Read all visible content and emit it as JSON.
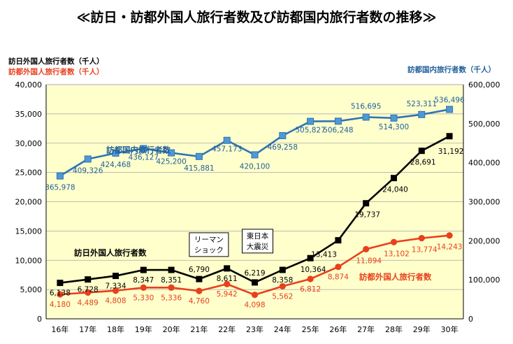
{
  "title": "≪訪日・訪都外国人旅行者数及び訪都国内旅行者数の推移≫",
  "axis_titles": {
    "left_black": "訪日外国人旅行者数（千人）",
    "left_red": "訪都外国人旅行者数（千人）",
    "right_blue": "訪都国内旅行者数（千人）"
  },
  "colors": {
    "plot_bg": "#ffffcc",
    "black_series": "#000000",
    "red_series": "#e8401c",
    "blue_series": "#2e74b5",
    "blue_marker": "#4f98d4",
    "red_label": "#e8401c",
    "blue_label": "#1f5f9a"
  },
  "chart_data": {
    "type": "line",
    "categories": [
      "16年",
      "17年",
      "18年",
      "19年",
      "20年",
      "21年",
      "22年",
      "23年",
      "24年",
      "25年",
      "26年",
      "27年",
      "28年",
      "29年",
      "30年"
    ],
    "left_axis": {
      "min": 0,
      "max": 40000,
      "ticks": [
        "0",
        "5,000",
        "10,000",
        "15,000",
        "20,000",
        "25,000",
        "30,000",
        "35,000",
        "40,000"
      ]
    },
    "right_axis": {
      "min": 0,
      "max": 600000,
      "ticks": [
        "0",
        "100,000",
        "200,000",
        "300,000",
        "400,000",
        "500,000",
        "600,000"
      ]
    },
    "grid": true,
    "series": [
      {
        "name": "訪日外国人旅行者数",
        "axis": "left",
        "values": [
          6138,
          6728,
          7334,
          8347,
          8351,
          6790,
          8611,
          6219,
          8358,
          10364,
          13413,
          19737,
          24040,
          28691,
          31192
        ],
        "labels": [
          "6,138",
          "6,728",
          "7,334",
          "8,347",
          "8,351",
          "6,790",
          "8,611",
          "6,219",
          "8,358",
          "10,364",
          "13,413",
          "19,737",
          "24,040",
          "28,691",
          "31,192"
        ]
      },
      {
        "name": "訪都外国人旅行者数",
        "axis": "left",
        "values": [
          4180,
          4489,
          4808,
          5330,
          5336,
          4760,
          5942,
          4098,
          5562,
          6812,
          8874,
          11894,
          13102,
          13774,
          14243
        ],
        "labels": [
          "4,180",
          "4,489",
          "4,808",
          "5,330",
          "5,336",
          "4,760",
          "5,942",
          "4,098",
          "5,562",
          "6,812",
          "8,874",
          "11,894",
          "13,102",
          "13,774",
          "14,243"
        ]
      },
      {
        "name": "訪都国内旅行者数",
        "axis": "right",
        "values": [
          365978,
          409326,
          424468,
          436127,
          425200,
          415881,
          457173,
          420100,
          469258,
          505827,
          506248,
          516695,
          514300,
          523311,
          536496
        ],
        "labels": [
          "365,978",
          "409,326",
          "424,468",
          "436,127",
          "425,200",
          "415,881",
          "457,173",
          "420,100",
          "469,258",
          "505,827",
          "506,248",
          "516,695",
          "514,300",
          "523,311",
          "536,496"
        ]
      }
    ],
    "annotations": [
      {
        "text_lines": [
          "リーマン",
          "ショック"
        ],
        "boxed": true
      },
      {
        "text_lines": [
          "東日本",
          "大震災"
        ],
        "boxed": true
      }
    ]
  }
}
